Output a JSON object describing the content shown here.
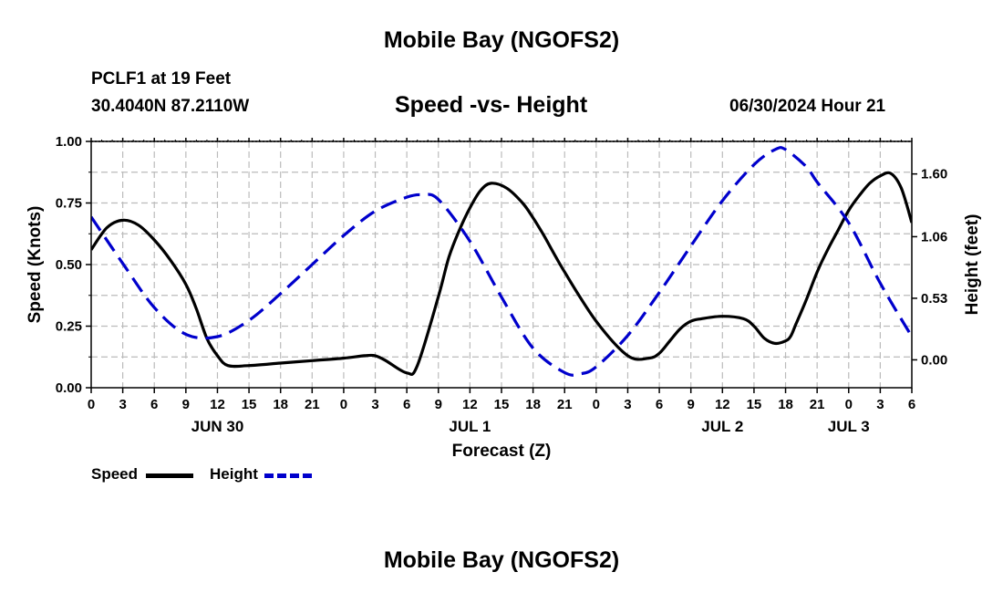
{
  "header": {
    "title": "Mobile Bay (NGOFS2)",
    "station": "PCLF1 at 19 Feet",
    "coords": "30.4040N  87.2110W",
    "chart_title": "Speed -vs- Height",
    "datetime": "06/30/2024 Hour 21"
  },
  "footer": {
    "title": "Mobile Bay (NGOFS2)"
  },
  "legend": {
    "speed": "Speed",
    "height": "Height"
  },
  "colors": {
    "speed": "#000000",
    "height": "#0000cc",
    "grid": "#bbbbbb"
  },
  "chart_data": {
    "type": "line",
    "title": "Speed -vs- Height",
    "xlabel": "Forecast (Z)",
    "ylabel": "Speed (Knots)",
    "y2label": "Height (feet)",
    "xlim": [
      0,
      78
    ],
    "x_tick_labels": [
      "0",
      "3",
      "6",
      "9",
      "12",
      "15",
      "18",
      "21",
      "0",
      "3",
      "6",
      "9",
      "12",
      "15",
      "18",
      "21",
      "0",
      "3",
      "6",
      "9",
      "12",
      "15",
      "18",
      "21",
      "0",
      "3",
      "6"
    ],
    "date_labels": [
      {
        "label": "JUN 30",
        "hour": 12
      },
      {
        "label": "JUL 1",
        "hour": 36
      },
      {
        "label": "JUL 2",
        "hour": 60
      },
      {
        "label": "JUL 3",
        "hour": 72
      }
    ],
    "ylim": [
      0,
      1.0
    ],
    "y_ticks": [
      "0.00",
      "0.25",
      "0.50",
      "0.75",
      "1.00"
    ],
    "y2lim": [
      -0.24,
      1.88
    ],
    "y2_ticks": [
      "0.00",
      "0.53",
      "1.06",
      "1.60"
    ],
    "grid": true,
    "legend_position": "bottom-left",
    "series": [
      {
        "name": "Speed",
        "axis": "left",
        "style": "solid",
        "x": [
          0,
          1.5,
          3,
          4.5,
          6,
          7.5,
          9,
          10,
          11,
          12,
          13,
          15,
          18,
          21,
          24,
          26,
          27,
          28,
          30,
          31,
          33,
          34,
          35,
          36,
          37,
          38,
          39.5,
          41,
          42,
          43,
          45,
          48,
          51,
          53,
          54,
          55,
          56,
          57,
          58,
          60,
          62,
          63,
          64,
          65,
          66,
          66.5,
          67,
          68,
          69,
          70,
          71,
          72,
          73,
          74,
          75,
          76,
          77,
          78
        ],
        "y": [
          0.56,
          0.65,
          0.68,
          0.66,
          0.6,
          0.52,
          0.42,
          0.32,
          0.2,
          0.13,
          0.09,
          0.09,
          0.1,
          0.11,
          0.12,
          0.13,
          0.13,
          0.11,
          0.06,
          0.09,
          0.37,
          0.53,
          0.64,
          0.73,
          0.8,
          0.83,
          0.81,
          0.75,
          0.69,
          0.62,
          0.47,
          0.27,
          0.13,
          0.12,
          0.14,
          0.19,
          0.24,
          0.27,
          0.28,
          0.29,
          0.28,
          0.25,
          0.2,
          0.18,
          0.19,
          0.21,
          0.26,
          0.36,
          0.47,
          0.56,
          0.64,
          0.72,
          0.78,
          0.83,
          0.86,
          0.87,
          0.81,
          0.67
        ]
      },
      {
        "name": "Height",
        "axis": "right",
        "style": "dashed",
        "x": [
          0,
          3,
          6,
          9,
          12,
          15,
          18,
          21,
          24,
          27,
          30,
          31.5,
          33,
          36,
          39,
          42,
          45,
          46.5,
          48,
          51,
          54,
          57,
          60,
          63,
          65,
          66,
          68,
          69,
          72,
          75,
          78
        ],
        "y": [
          1.23,
          0.83,
          0.45,
          0.22,
          0.2,
          0.34,
          0.57,
          0.82,
          1.07,
          1.28,
          1.4,
          1.42,
          1.38,
          1.02,
          0.54,
          0.1,
          -0.11,
          -0.12,
          -0.06,
          0.21,
          0.58,
          0.98,
          1.37,
          1.68,
          1.81,
          1.81,
          1.66,
          1.53,
          1.18,
          0.66,
          0.2
        ]
      }
    ]
  }
}
